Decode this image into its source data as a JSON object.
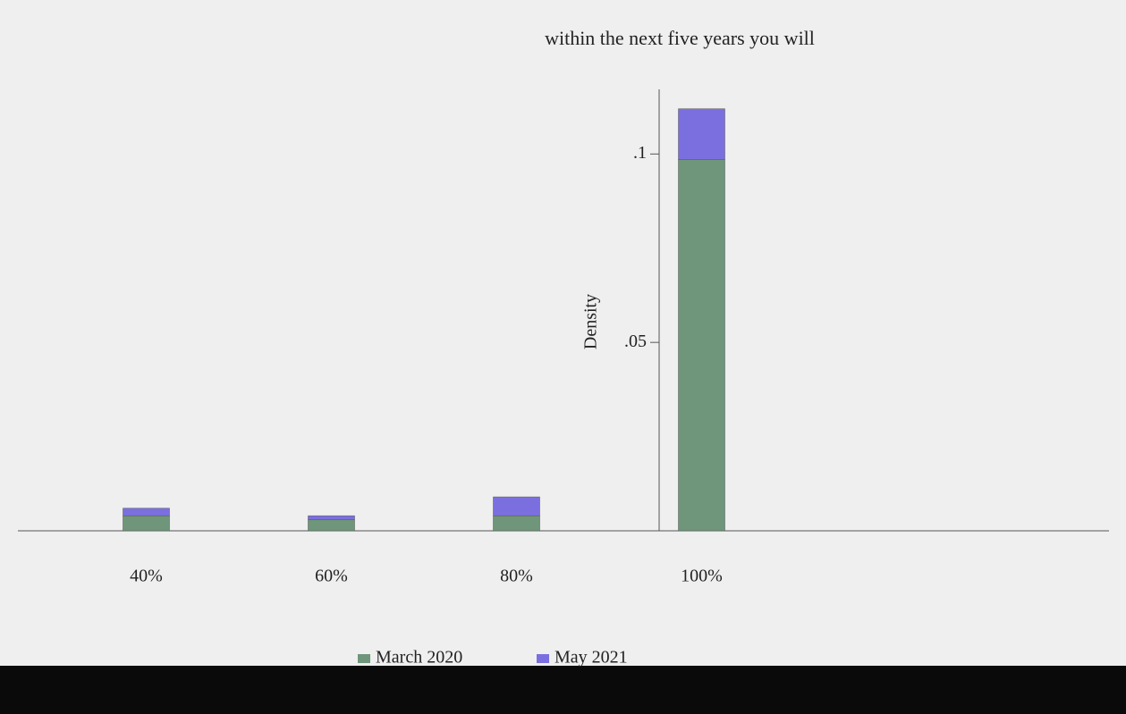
{
  "chart_data": {
    "type": "bar",
    "stacked": true,
    "subtitle": "within the next five years you will",
    "y_label": "Density",
    "categories": [
      "40%",
      "60%",
      "80%",
      "100%"
    ],
    "series": [
      {
        "name": "March 2020",
        "color": "#6f967a",
        "values": [
          0.004,
          0.003,
          0.004,
          0.0985
        ]
      },
      {
        "name": "May 2021",
        "color": "#7b6fe0",
        "values": [
          0.002,
          0.001,
          0.005,
          0.0135
        ]
      }
    ],
    "ylim": [
      0,
      0.12
    ],
    "yticks": [
      {
        "value": 0.05,
        "label": ".05"
      },
      {
        "value": 0.1,
        "label": ".1"
      }
    ]
  }
}
